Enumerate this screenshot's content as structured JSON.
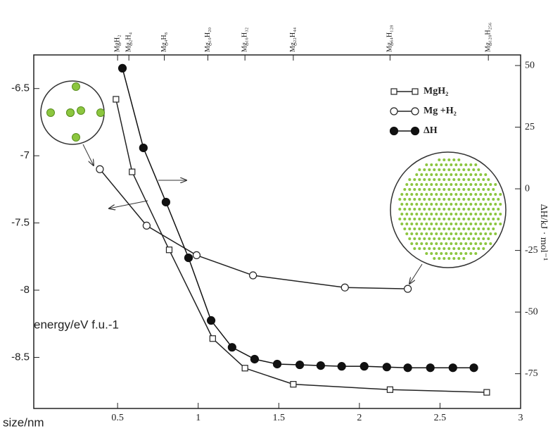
{
  "chart_data": {
    "type": "line",
    "xlabel": "size/nm",
    "ylabel": "energy/eV f.u.-1",
    "y2label": "ΔH/kJ · mol⁻¹",
    "xlim": [
      -0.02,
      3
    ],
    "xticks": [
      0.5,
      1,
      1.5,
      2,
      2.5,
      3
    ],
    "ylim": [
      -8.88,
      -6.25
    ],
    "yticks": [
      -6.5,
      -7.0,
      -7.5,
      -8.0,
      -8.5
    ],
    "y2lim": [
      -89.1,
      54.3
    ],
    "y2ticks": [
      50,
      25,
      0,
      -25,
      -50,
      -75
    ],
    "x2ticks": [
      {
        "value": 0.5,
        "label": "MgH₂"
      },
      {
        "value": 0.57,
        "label": "Mg₂H₄"
      },
      {
        "value": 0.79,
        "label": "Mg₄H₈"
      },
      {
        "value": 1.06,
        "label": "Mg₁₀H₂₀"
      },
      {
        "value": 1.29,
        "label": "Mg₁₆H₃₂"
      },
      {
        "value": 1.59,
        "label": "Mg₂₂H₄₄"
      },
      {
        "value": 2.19,
        "label": "Mg₆₄H₁₂₈"
      },
      {
        "value": 2.8,
        "label": "Mg₁₂₈H₂₅₆"
      }
    ],
    "legend": "upper right",
    "series": [
      {
        "name": "MgH₂",
        "color": "#222222",
        "marker": "square",
        "x": [
          0.49,
          0.59,
          0.82,
          1.09,
          1.29,
          1.59,
          2.19,
          2.79
        ],
        "values": [
          -6.58,
          -7.12,
          -7.7,
          -8.36,
          -8.58,
          -8.7,
          -8.74,
          -8.76
        ]
      },
      {
        "name": "Mg +H₂",
        "color": "#222222",
        "marker": "circle-open",
        "x": [
          0.39,
          0.68,
          0.99,
          1.34,
          1.91,
          2.3
        ],
        "values": [
          -7.1,
          -7.52,
          -7.74,
          -7.89,
          -7.98,
          -7.99
        ]
      },
      {
        "name": "ΔH",
        "color": "#111111",
        "marker": "circle-filled",
        "axis": "y2",
        "x": [
          0.53,
          0.66,
          0.8,
          0.94,
          1.08,
          1.21,
          1.35,
          1.49,
          1.63,
          1.76,
          1.89,
          2.03,
          2.17,
          2.3,
          2.44,
          2.58,
          2.71
        ],
        "values": [
          48.9,
          16.6,
          -5.4,
          -28,
          -53.4,
          -64.3,
          -69.1,
          -71.1,
          -71.4,
          -71.7,
          -72,
          -72,
          -72.3,
          -72.6,
          -72.6,
          -72.6,
          -72.6
        ]
      }
    ]
  }
}
